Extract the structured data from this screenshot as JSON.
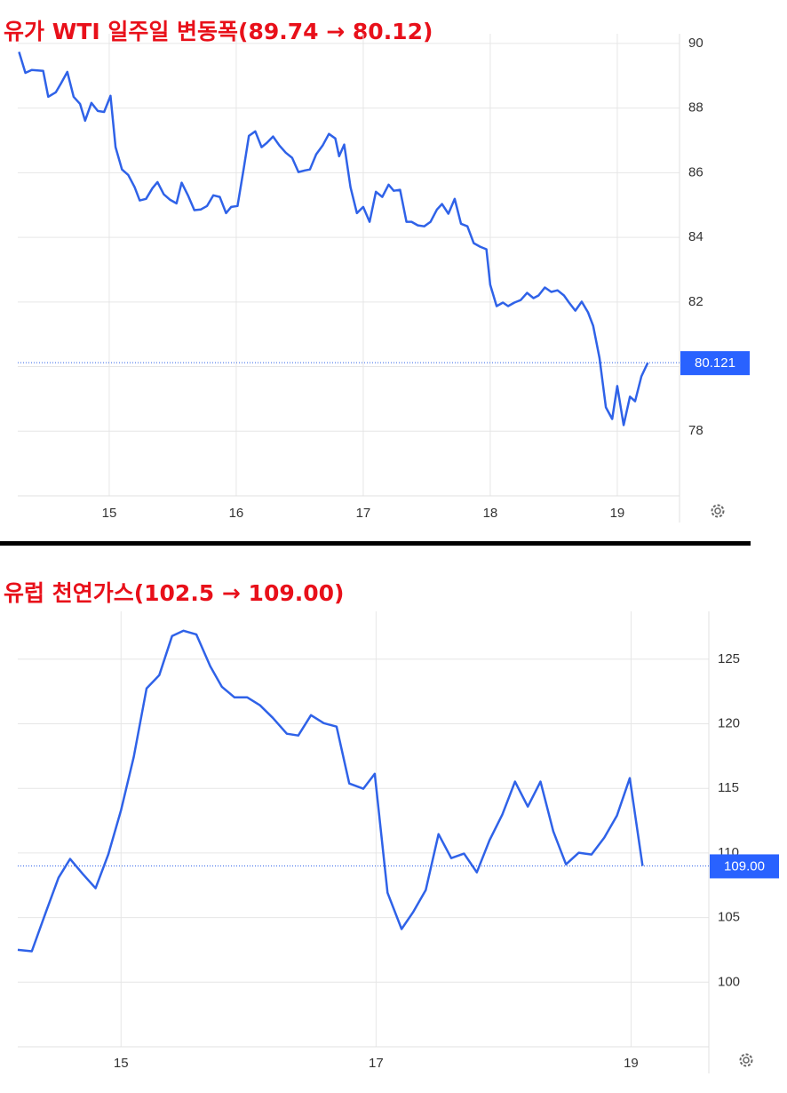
{
  "chart_data": [
    {
      "type": "line",
      "title": "유가 WTI 일주일 변동폭(89.74 → 80.12)",
      "color": "#2f62e8",
      "x": [
        14.29,
        14.34,
        14.39,
        14.48,
        14.52,
        14.58,
        14.62,
        14.67,
        14.72,
        14.77,
        14.81,
        14.86,
        14.91,
        14.96,
        15.01,
        15.05,
        15.1,
        15.15,
        15.2,
        15.24,
        15.29,
        15.34,
        15.38,
        15.43,
        15.48,
        15.53,
        15.57,
        15.62,
        15.67,
        15.72,
        15.77,
        15.82,
        15.87,
        15.92,
        15.96,
        16.01,
        16.06,
        16.1,
        16.15,
        16.2,
        16.24,
        16.29,
        16.34,
        16.39,
        16.44,
        16.49,
        16.54,
        16.58,
        16.63,
        16.68,
        16.73,
        16.78,
        16.81,
        16.85,
        16.9,
        16.95,
        17.0,
        17.05,
        17.1,
        17.15,
        17.2,
        17.24,
        17.29,
        17.34,
        17.38,
        17.43,
        17.48,
        17.53,
        17.58,
        17.62,
        17.67,
        17.72,
        17.77,
        17.82,
        17.87,
        17.92,
        17.97,
        18.0,
        18.05,
        18.1,
        18.14,
        18.19,
        18.24,
        18.29,
        18.34,
        18.38,
        18.43,
        18.48,
        18.53,
        18.58,
        18.62,
        18.67,
        18.72,
        18.77,
        18.81,
        18.86,
        18.91,
        18.96,
        19.0,
        19.05,
        19.1,
        19.14,
        19.19,
        19.24
      ],
      "values": [
        89.74,
        89.09,
        89.18,
        89.15,
        88.35,
        88.49,
        88.76,
        89.12,
        88.35,
        88.13,
        87.61,
        88.16,
        87.91,
        87.88,
        88.38,
        86.79,
        86.1,
        85.93,
        85.55,
        85.14,
        85.19,
        85.52,
        85.71,
        85.33,
        85.16,
        85.05,
        85.69,
        85.3,
        84.84,
        84.86,
        84.97,
        85.3,
        85.25,
        84.75,
        84.94,
        84.97,
        86.15,
        87.14,
        87.28,
        86.79,
        86.92,
        87.12,
        86.84,
        86.62,
        86.46,
        86.02,
        86.07,
        86.1,
        86.57,
        86.84,
        87.2,
        87.06,
        86.51,
        86.87,
        85.55,
        84.75,
        84.94,
        84.48,
        85.41,
        85.25,
        85.63,
        85.44,
        85.47,
        84.48,
        84.48,
        84.37,
        84.34,
        84.48,
        84.86,
        85.03,
        84.73,
        85.19,
        84.42,
        84.34,
        83.82,
        83.71,
        83.63,
        82.53,
        81.87,
        81.98,
        81.87,
        81.98,
        82.06,
        82.28,
        82.12,
        82.2,
        82.45,
        82.31,
        82.36,
        82.2,
        81.98,
        81.73,
        82.01,
        81.68,
        81.26,
        80.27,
        78.74,
        78.38,
        79.4,
        78.19,
        79.07,
        78.93,
        79.7,
        80.12
      ],
      "current_value": 80.121,
      "xlim": [
        14.28,
        19.49
      ],
      "xticks": [
        15,
        16,
        17,
        18,
        19
      ],
      "ylim": [
        76,
        90.3
      ],
      "yticks": [
        78,
        80,
        82,
        84,
        86,
        88,
        90
      ],
      "ytick_labels_hidden": [
        80
      ],
      "grid": true
    },
    {
      "type": "line",
      "title": "유럽 천연가스(102.5 → 109.00)",
      "color": "#2f62e8",
      "x": [
        14.19,
        14.3,
        14.41,
        14.51,
        14.6,
        14.7,
        14.8,
        14.9,
        15.0,
        15.1,
        15.2,
        15.3,
        15.4,
        15.49,
        15.59,
        15.7,
        15.79,
        15.89,
        15.99,
        16.09,
        16.19,
        16.3,
        16.39,
        16.49,
        16.59,
        16.69,
        16.79,
        16.9,
        16.99,
        17.09,
        17.2,
        17.29,
        17.39,
        17.49,
        17.59,
        17.69,
        17.79,
        17.89,
        17.99,
        18.09,
        18.19,
        18.29,
        18.39,
        18.49,
        18.59,
        18.69,
        18.79,
        18.89,
        18.99,
        19.09
      ],
      "values": [
        102.5,
        102.39,
        105.41,
        108.09,
        109.54,
        108.37,
        107.27,
        109.88,
        113.32,
        117.44,
        122.73,
        123.76,
        126.79,
        127.2,
        126.92,
        124.45,
        122.87,
        122.04,
        122.04,
        121.43,
        120.46,
        119.23,
        119.09,
        120.67,
        120.05,
        119.78,
        115.38,
        114.97,
        116.13,
        106.92,
        104.11,
        105.41,
        107.13,
        111.46,
        109.6,
        109.95,
        108.5,
        110.98,
        112.97,
        115.52,
        113.59,
        115.52,
        111.67,
        109.12,
        110.02,
        109.88,
        111.19,
        112.9,
        115.79,
        109.0
      ],
      "current_value": {
        "value": 109,
        "label": "109.00"
      },
      "xlim": [
        14.19,
        19.61
      ],
      "xticks": [
        15,
        17,
        19
      ],
      "ylim": [
        95,
        128.7
      ],
      "yticks": [
        100,
        105,
        110,
        115,
        120,
        125
      ],
      "grid": true
    }
  ]
}
